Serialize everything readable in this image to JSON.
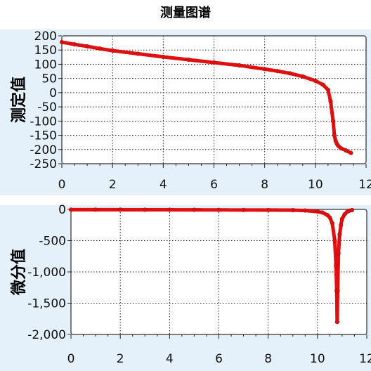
{
  "title": "测量图谱",
  "colors": {
    "marker": "#e01010",
    "line": "#2030d0",
    "panel_bg": "#e4f1fb",
    "plot_bg": "#ffffff",
    "grid": "#222222"
  },
  "chart_data": [
    {
      "type": "line",
      "ylabel": "测定值",
      "xlabel": "",
      "xlim": [
        0,
        12
      ],
      "ylim": [
        -250,
        200
      ],
      "xticks": [
        "0",
        "2",
        "4",
        "6",
        "8",
        "10",
        "12"
      ],
      "yticks": [
        "200",
        "150",
        "100",
        "50",
        "0",
        "-50",
        "-100",
        "-150",
        "-200",
        "-250"
      ],
      "grid": true,
      "series": [
        {
          "x": [
            0.0,
            0.5,
            1.0,
            1.5,
            2.0,
            3.0,
            4.0,
            5.0,
            6.0,
            7.0,
            8.0,
            8.5,
            9.0,
            9.5,
            10.0,
            10.3,
            10.5,
            10.6,
            10.7,
            10.75,
            10.8,
            10.85,
            10.9,
            11.0,
            11.2,
            11.4
          ],
          "y": [
            178,
            170,
            163,
            155,
            148,
            137,
            126,
            116,
            106,
            96,
            83,
            76,
            68,
            57,
            42,
            28,
            10,
            -30,
            -100,
            -150,
            -170,
            -180,
            -187,
            -195,
            -203,
            -212
          ]
        }
      ]
    },
    {
      "type": "line",
      "ylabel": "微分值",
      "xlabel": "",
      "xlim": [
        0,
        12
      ],
      "ylim": [
        -2000,
        0
      ],
      "xticks": [
        "0",
        "2",
        "4",
        "6",
        "8",
        "10",
        "12"
      ],
      "yticks": [
        "0",
        "-500",
        "-1,000",
        "-1,500",
        "-2,000"
      ],
      "grid": true,
      "series": [
        {
          "x": [
            0.0,
            1.0,
            2.0,
            3.0,
            4.0,
            5.0,
            6.0,
            7.0,
            8.0,
            9.0,
            9.5,
            10.0,
            10.2,
            10.4,
            10.5,
            10.6,
            10.7,
            10.75,
            10.78,
            10.8,
            10.82,
            10.85,
            10.9,
            10.95,
            11.0,
            11.1,
            11.2,
            11.3,
            11.4
          ],
          "y": [
            -5,
            -5,
            -5,
            -6,
            -6,
            -7,
            -8,
            -9,
            -10,
            -12,
            -18,
            -35,
            -50,
            -90,
            -130,
            -220,
            -500,
            -900,
            -1300,
            -1800,
            -1300,
            -700,
            -400,
            -250,
            -150,
            -80,
            -40,
            -20,
            -10
          ]
        }
      ]
    }
  ]
}
